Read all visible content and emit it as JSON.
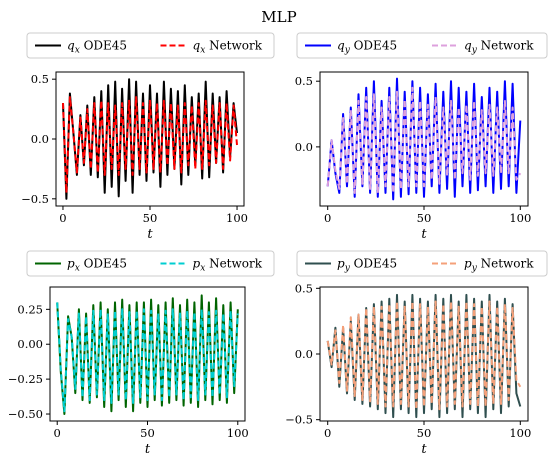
{
  "title": "MLP",
  "chart_data": [
    {
      "type": "line",
      "xlabel": "t",
      "ylabel": "",
      "xlim": [
        -4,
        104
      ],
      "ylim": [
        -0.56,
        0.56
      ],
      "xticks": [
        0,
        50,
        100
      ],
      "xtick_labels": [
        "0",
        "50",
        "100"
      ],
      "yticks": [
        -0.5,
        0.0,
        0.5
      ],
      "ytick_labels": [
        "−0.5",
        "0.0",
        "0.5"
      ],
      "legend_position": "top",
      "series": [
        {
          "name": "q_x ODE45",
          "color": "#000000",
          "dash": "solid",
          "x": [
            0,
            2,
            4,
            6,
            8,
            10,
            12,
            14,
            16,
            18,
            20,
            22,
            24,
            26,
            28,
            30,
            32,
            34,
            36,
            38,
            40,
            42,
            44,
            46,
            48,
            50,
            52,
            54,
            56,
            58,
            60,
            62,
            64,
            66,
            68,
            70,
            72,
            74,
            76,
            78,
            80,
            82,
            84,
            86,
            88,
            90,
            92,
            94,
            96,
            98,
            100
          ],
          "y": [
            0.3,
            -0.5,
            0.38,
            0.05,
            -0.3,
            0.2,
            -0.22,
            0.28,
            -0.3,
            0.35,
            -0.32,
            0.4,
            -0.45,
            0.45,
            -0.4,
            0.48,
            -0.48,
            0.42,
            -0.35,
            0.5,
            -0.45,
            0.48,
            -0.3,
            0.38,
            -0.35,
            0.45,
            -0.28,
            0.38,
            -0.4,
            0.48,
            -0.3,
            0.42,
            -0.25,
            0.4,
            -0.38,
            0.45,
            -0.3,
            0.35,
            -0.22,
            0.38,
            -0.33,
            0.48,
            -0.32,
            0.38,
            -0.2,
            0.35,
            -0.28,
            0.4,
            -0.15,
            0.3,
            0.05
          ]
        },
        {
          "name": "q_x Network",
          "color": "#ff0000",
          "dash": "dashed",
          "x": [
            0,
            2,
            4,
            6,
            8,
            10,
            12,
            14,
            16,
            18,
            20,
            22,
            24,
            26,
            28,
            30,
            32,
            34,
            36,
            38,
            40,
            42,
            44,
            46,
            48,
            50,
            52,
            54,
            56,
            58,
            60,
            62,
            64,
            66,
            68,
            70,
            72,
            74,
            76,
            78,
            80,
            82,
            84,
            86,
            88,
            90,
            92,
            94,
            96,
            98,
            100
          ],
          "y": [
            0.3,
            -0.45,
            0.35,
            0.05,
            -0.28,
            0.18,
            -0.2,
            0.25,
            -0.25,
            0.3,
            -0.28,
            0.32,
            -0.3,
            0.3,
            -0.25,
            0.28,
            -0.3,
            0.3,
            -0.25,
            0.32,
            -0.3,
            0.35,
            -0.25,
            0.3,
            -0.28,
            0.32,
            -0.25,
            0.3,
            -0.28,
            0.32,
            -0.22,
            0.3,
            -0.25,
            0.28,
            -0.28,
            0.3,
            -0.22,
            0.28,
            -0.25,
            0.3,
            -0.25,
            0.32,
            -0.22,
            0.28,
            -0.2,
            0.3,
            -0.25,
            0.3,
            -0.18,
            0.28,
            -0.05
          ]
        }
      ]
    },
    {
      "type": "line",
      "xlabel": "t",
      "ylabel": "",
      "xlim": [
        -4,
        104
      ],
      "ylim": [
        -0.45,
        0.57
      ],
      "xticks": [
        0,
        50,
        100
      ],
      "xtick_labels": [
        "0",
        "50",
        "100"
      ],
      "yticks": [
        0.0,
        0.5
      ],
      "ytick_labels": [
        "0.0",
        "0.5"
      ],
      "legend_position": "top",
      "series": [
        {
          "name": "q_y ODE45",
          "color": "#0000ff",
          "dash": "solid",
          "x": [
            0,
            2,
            4,
            6,
            8,
            10,
            12,
            14,
            16,
            18,
            20,
            22,
            24,
            26,
            28,
            30,
            32,
            34,
            36,
            38,
            40,
            42,
            44,
            46,
            48,
            50,
            52,
            54,
            56,
            58,
            60,
            62,
            64,
            66,
            68,
            70,
            72,
            74,
            76,
            78,
            80,
            82,
            84,
            86,
            88,
            90,
            92,
            94,
            96,
            98,
            100
          ],
          "y": [
            -0.3,
            0.05,
            -0.2,
            -0.35,
            0.25,
            -0.3,
            0.3,
            -0.38,
            0.4,
            -0.3,
            0.45,
            -0.35,
            0.5,
            -0.38,
            0.35,
            -0.35,
            0.45,
            -0.4,
            0.52,
            -0.38,
            0.42,
            -0.36,
            0.5,
            -0.35,
            0.45,
            -0.38,
            0.4,
            -0.3,
            0.48,
            -0.35,
            0.42,
            -0.32,
            0.5,
            -0.38,
            0.45,
            -0.3,
            0.42,
            -0.35,
            0.48,
            -0.33,
            0.38,
            -0.3,
            0.45,
            -0.35,
            0.42,
            -0.32,
            0.5,
            -0.3,
            0.48,
            -0.35,
            0.2
          ]
        },
        {
          "name": "q_y Network",
          "color": "#dda0dd",
          "dash": "dashed",
          "x": [
            0,
            2,
            4,
            6,
            8,
            10,
            12,
            14,
            16,
            18,
            20,
            22,
            24,
            26,
            28,
            30,
            32,
            34,
            36,
            38,
            40,
            42,
            44,
            46,
            48,
            50,
            52,
            54,
            56,
            58,
            60,
            62,
            64,
            66,
            68,
            70,
            72,
            74,
            76,
            78,
            80,
            82,
            84,
            86,
            88,
            90,
            92,
            94,
            96,
            98,
            100
          ],
          "y": [
            -0.3,
            0.05,
            -0.18,
            -0.32,
            0.22,
            -0.28,
            0.28,
            -0.35,
            0.35,
            -0.28,
            0.38,
            -0.32,
            0.4,
            -0.35,
            0.3,
            -0.3,
            0.38,
            -0.35,
            0.42,
            -0.32,
            0.36,
            -0.3,
            0.45,
            -0.3,
            0.35,
            -0.3,
            0.32,
            -0.25,
            0.38,
            -0.28,
            0.3,
            -0.22,
            0.35,
            -0.25,
            0.3,
            -0.2,
            0.32,
            -0.25,
            0.35,
            -0.22,
            0.28,
            -0.2,
            0.32,
            -0.22,
            0.3,
            -0.2,
            0.35,
            -0.2,
            0.3,
            -0.25,
            -0.2
          ]
        }
      ]
    },
    {
      "type": "line",
      "xlabel": "t",
      "ylabel": "",
      "xlim": [
        -4,
        104
      ],
      "ylim": [
        -0.55,
        0.41
      ],
      "xticks": [
        0,
        50,
        100
      ],
      "xtick_labels": [
        "0",
        "50",
        "100"
      ],
      "yticks": [
        -0.5,
        -0.25,
        0.0,
        0.25
      ],
      "ytick_labels": [
        "−0.50",
        "−0.25",
        "0.00",
        "0.25"
      ],
      "legend_position": "top",
      "series": [
        {
          "name": "p_x ODE45",
          "color": "#006400",
          "dash": "solid",
          "x": [
            0,
            2,
            4,
            6,
            8,
            10,
            12,
            14,
            16,
            18,
            20,
            22,
            24,
            26,
            28,
            30,
            32,
            34,
            36,
            38,
            40,
            42,
            44,
            46,
            48,
            50,
            52,
            54,
            56,
            58,
            60,
            62,
            64,
            66,
            68,
            70,
            72,
            74,
            76,
            78,
            80,
            82,
            84,
            86,
            88,
            90,
            92,
            94,
            96,
            98,
            100
          ],
          "y": [
            0.3,
            -0.2,
            -0.5,
            0.2,
            0.05,
            -0.35,
            0.25,
            -0.4,
            0.22,
            -0.42,
            0.28,
            -0.38,
            0.3,
            -0.45,
            0.25,
            -0.48,
            0.3,
            -0.4,
            0.32,
            -0.45,
            0.28,
            -0.48,
            0.3,
            -0.42,
            0.3,
            -0.45,
            0.32,
            -0.4,
            0.28,
            -0.44,
            0.3,
            -0.42,
            0.33,
            -0.4,
            0.28,
            -0.44,
            0.32,
            -0.42,
            0.3,
            -0.45,
            0.35,
            -0.4,
            0.3,
            -0.43,
            0.33,
            -0.4,
            0.28,
            -0.42,
            0.3,
            -0.35,
            0.25
          ]
        },
        {
          "name": "p_x Network",
          "color": "#00ced1",
          "dash": "dashed",
          "x": [
            0,
            2,
            4,
            6,
            8,
            10,
            12,
            14,
            16,
            18,
            20,
            22,
            24,
            26,
            28,
            30,
            32,
            34,
            36,
            38,
            40,
            42,
            44,
            46,
            48,
            50,
            52,
            54,
            56,
            58,
            60,
            62,
            64,
            66,
            68,
            70,
            72,
            74,
            76,
            78,
            80,
            82,
            84,
            86,
            88,
            90,
            92,
            94,
            96,
            98,
            100
          ],
          "y": [
            0.3,
            -0.18,
            -0.48,
            0.18,
            0.05,
            -0.32,
            0.22,
            -0.38,
            0.2,
            -0.4,
            0.24,
            -0.36,
            0.25,
            -0.4,
            0.22,
            -0.42,
            0.24,
            -0.36,
            0.25,
            -0.4,
            0.23,
            -0.42,
            0.24,
            -0.38,
            0.25,
            -0.4,
            0.24,
            -0.36,
            0.22,
            -0.4,
            0.24,
            -0.38,
            0.25,
            -0.36,
            0.22,
            -0.4,
            0.24,
            -0.38,
            0.23,
            -0.4,
            0.25,
            -0.36,
            0.23,
            -0.38,
            0.24,
            -0.36,
            0.22,
            -0.38,
            0.24,
            -0.3,
            0.22
          ]
        }
      ]
    },
    {
      "type": "line",
      "xlabel": "t",
      "ylabel": "",
      "xlim": [
        -4,
        104
      ],
      "ylim": [
        -0.51,
        0.51
      ],
      "xticks": [
        0,
        50,
        100
      ],
      "xtick_labels": [
        "0",
        "50",
        "100"
      ],
      "yticks": [
        -0.5,
        0.0,
        0.5
      ],
      "ytick_labels": [
        "−0.5",
        "0.0",
        "0.5"
      ],
      "legend_position": "top",
      "series": [
        {
          "name": "p_y ODE45",
          "color": "#2f4f4f",
          "dash": "solid",
          "x": [
            0,
            2,
            4,
            6,
            8,
            10,
            12,
            14,
            16,
            18,
            20,
            22,
            24,
            26,
            28,
            30,
            32,
            34,
            36,
            38,
            40,
            42,
            44,
            46,
            48,
            50,
            52,
            54,
            56,
            58,
            60,
            62,
            64,
            66,
            68,
            70,
            72,
            74,
            76,
            78,
            80,
            82,
            84,
            86,
            88,
            90,
            92,
            94,
            96,
            98,
            100
          ],
          "y": [
            0.1,
            -0.1,
            0.2,
            -0.25,
            0.2,
            -0.3,
            0.25,
            -0.35,
            0.3,
            -0.38,
            0.35,
            -0.4,
            0.38,
            -0.42,
            0.4,
            -0.45,
            0.42,
            -0.48,
            0.45,
            -0.42,
            0.4,
            -0.45,
            0.45,
            -0.48,
            0.42,
            -0.45,
            0.4,
            -0.42,
            0.45,
            -0.48,
            0.42,
            -0.45,
            0.45,
            -0.42,
            0.4,
            -0.48,
            0.45,
            -0.42,
            0.42,
            -0.45,
            0.4,
            -0.48,
            0.45,
            -0.42,
            0.4,
            -0.45,
            0.42,
            -0.4,
            0.38,
            -0.3,
            -0.4
          ]
        },
        {
          "name": "p_y Network",
          "color": "#f4a07a",
          "dash": "dashed",
          "x": [
            0,
            2,
            4,
            6,
            8,
            10,
            12,
            14,
            16,
            18,
            20,
            22,
            24,
            26,
            28,
            30,
            32,
            34,
            36,
            38,
            40,
            42,
            44,
            46,
            48,
            50,
            52,
            54,
            56,
            58,
            60,
            62,
            64,
            66,
            68,
            70,
            72,
            74,
            76,
            78,
            80,
            82,
            84,
            86,
            88,
            90,
            92,
            94,
            96,
            98,
            100
          ],
          "y": [
            0.1,
            -0.08,
            0.18,
            -0.22,
            0.22,
            -0.28,
            0.28,
            -0.32,
            0.3,
            -0.35,
            0.35,
            -0.36,
            0.36,
            -0.38,
            0.36,
            -0.4,
            0.38,
            -0.4,
            0.4,
            -0.38,
            0.36,
            -0.4,
            0.4,
            -0.42,
            0.38,
            -0.4,
            0.36,
            -0.38,
            0.4,
            -0.42,
            0.38,
            -0.4,
            0.4,
            -0.38,
            0.36,
            -0.4,
            0.4,
            -0.38,
            0.38,
            -0.4,
            0.36,
            -0.4,
            0.4,
            -0.38,
            0.36,
            -0.38,
            0.38,
            -0.35,
            0.35,
            -0.2,
            -0.25
          ]
        }
      ]
    }
  ]
}
